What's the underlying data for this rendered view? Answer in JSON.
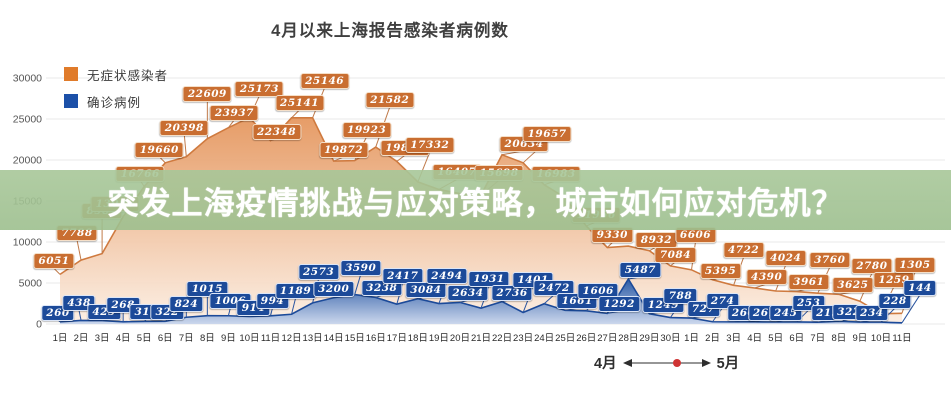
{
  "title": "4月以来上海报告感染者病例数",
  "overlay_banner": {
    "text": "突发上海疫情挑战与应对策略，城市如何应对危机？",
    "bg_color": "#a1c292",
    "text_color": "#ffffff"
  },
  "legend": {
    "items": [
      {
        "label": "无症状感染者",
        "color": "#e07b2a"
      },
      {
        "label": "确诊病例",
        "color": "#1b50a8"
      }
    ]
  },
  "month_axis": {
    "april": "4月",
    "may": "5月",
    "dot_color": "#cf3333"
  },
  "chart_data": {
    "type": "area",
    "title": "4月以来上海报告感染者病例数",
    "x_labels": [
      "1日",
      "2日",
      "3日",
      "4日",
      "5日",
      "6日",
      "7日",
      "8日",
      "9日",
      "10日",
      "11日",
      "12日",
      "13日",
      "14日",
      "15日",
      "16日",
      "17日",
      "18日",
      "19日",
      "20日",
      "21日",
      "22日",
      "23日",
      "24日",
      "25日",
      "26日",
      "27日",
      "28日",
      "29日",
      "30日",
      "1日",
      "2日",
      "3日",
      "4日",
      "5日",
      "6日",
      "7日",
      "8日",
      "9日",
      "10日",
      "11日"
    ],
    "ylim": [
      0,
      30000
    ],
    "yticks": [
      0,
      5000,
      10000,
      15000,
      20000,
      25000,
      30000
    ],
    "ytick_labels": [
      "0",
      "5000",
      "10000",
      "15000",
      "20000",
      "25000",
      "30000"
    ],
    "grid": true,
    "legend_position": "top-left",
    "series": [
      {
        "name": "无症状感染者",
        "box_color": "#c96e31",
        "line_color": "#cf7a3f",
        "fill_top": "#e5975f",
        "fill_bottom": "#fcefe4",
        "values": [
          6051,
          7788,
          8581,
          13086,
          16766,
          19660,
          20398,
          22609,
          23937,
          25173,
          22348,
          25141,
          25146,
          19872,
          19923,
          21582,
          19831,
          17332,
          16407,
          15900,
          15698,
          20634,
          19657,
          16983,
          15400,
          11956,
          9330,
          9500,
          8932,
          7084,
          6606,
          5395,
          4722,
          4390,
          4024,
          3961,
          3760,
          3625,
          2780,
          1259,
          1305
        ],
        "unlabeled_estimated_indices": [
          19,
          24,
          27
        ]
      },
      {
        "name": "确诊病例",
        "box_color": "#1c4a99",
        "line_color": "#1c4a99",
        "fill_top": "#2053a3",
        "fill_bottom": "#c9d6ed",
        "values": [
          260,
          438,
          425,
          268,
          311,
          322,
          824,
          1015,
          1006,
          914,
          994,
          1189,
          2573,
          3200,
          3590,
          3238,
          2417,
          3084,
          2494,
          2634,
          1931,
          2736,
          1401,
          2472,
          1661,
          1606,
          1292,
          5487,
          1249,
          788,
          727,
          274,
          260,
          261,
          245,
          253,
          215,
          322,
          234,
          228,
          144
        ],
        "unlabeled_estimated_indices": []
      }
    ]
  }
}
